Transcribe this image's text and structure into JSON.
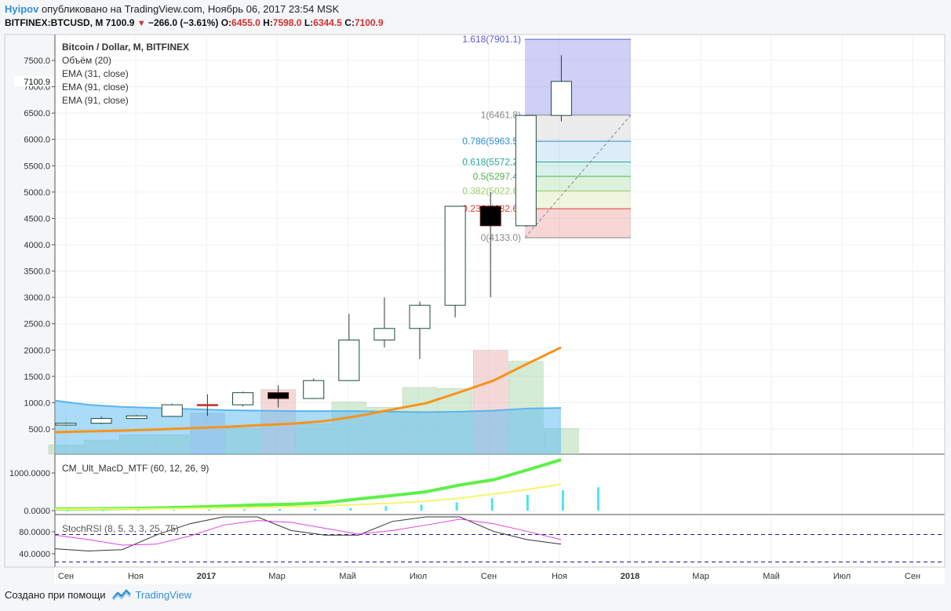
{
  "header": {
    "user": "Hyipov",
    "published_text": " опубликовано на TradingView.com, Ноябрь 06, 2017 23:54 MSK",
    "symbol": "BITFINEX:BTCUSD, M",
    "last": "7100.9",
    "change": "−266.0 (−3.61%)",
    "o_label": "O:",
    "o_val": "6455.0",
    "h_label": "H:",
    "h_val": "7598.0",
    "l_label": "L:",
    "l_val": "6344.5",
    "c_label": "C:",
    "c_val": "7100.9"
  },
  "legend": {
    "title": "Bitcoin / Dollar, M, BITFINEX",
    "volume": "Объём (20)",
    "ema1": "EMA (31, close)",
    "ema2": "EMA (91, close)",
    "ema3": "EMA (91, close)"
  },
  "macd_label": "CM_Ult_MacD_MTF (60, 12, 26, 9)",
  "stoch_label": "StochRSI (8, 5, 3, 3, 25, 75)",
  "footer": {
    "made_with": "Создано при помощи",
    "brand": "TradingView"
  },
  "chart_data": [
    {
      "type": "candlestick",
      "title": "Bitcoin / Dollar, M, BITFINEX",
      "ylim": [
        0,
        8000
      ],
      "yticks": [
        500,
        1000,
        1500,
        2000,
        2500,
        3000,
        3500,
        4000,
        4500,
        5000,
        5500,
        6000,
        6500,
        7000,
        7500
      ],
      "ytick_labels": [
        "500.0",
        "1000.0",
        "1500.0",
        "2000.0",
        "2500.0",
        "3000.0",
        "3500.0",
        "4000.0",
        "4500.0",
        "5000.0",
        "5500.0",
        "6000.0",
        "6500.0",
        "7000.0",
        "7500.0"
      ],
      "last_price_label": "7100.9",
      "x_labels": [
        "Сен",
        "Ноя",
        "2017",
        "Мар",
        "Май",
        "Июл",
        "Сен",
        "Ноя",
        "2018",
        "Мар",
        "Май",
        "Июл",
        "Сен"
      ],
      "candles": [
        {
          "o": 575,
          "h": 625,
          "l": 560,
          "c": 610,
          "dir": "up"
        },
        {
          "o": 610,
          "h": 735,
          "l": 590,
          "c": 700,
          "dir": "up"
        },
        {
          "o": 700,
          "h": 765,
          "l": 690,
          "c": 750,
          "dir": "up"
        },
        {
          "o": 740,
          "h": 980,
          "l": 735,
          "c": 960,
          "dir": "up"
        },
        {
          "o": 965,
          "h": 1160,
          "l": 750,
          "c": 965,
          "dir": "flat"
        },
        {
          "o": 960,
          "h": 1210,
          "l": 930,
          "c": 1190,
          "dir": "up"
        },
        {
          "o": 1190,
          "h": 1330,
          "l": 910,
          "c": 1080,
          "dir": "down"
        },
        {
          "o": 1080,
          "h": 1460,
          "l": 1070,
          "c": 1420,
          "dir": "up"
        },
        {
          "o": 1420,
          "h": 2690,
          "l": 1420,
          "c": 2190,
          "dir": "up"
        },
        {
          "o": 2190,
          "h": 3000,
          "l": 2050,
          "c": 2410,
          "dir": "up"
        },
        {
          "o": 2410,
          "h": 2920,
          "l": 1830,
          "c": 2850,
          "dir": "up"
        },
        {
          "o": 2850,
          "h": 4740,
          "l": 2620,
          "c": 4730,
          "dir": "up"
        },
        {
          "o": 4730,
          "h": 5000,
          "l": 3000,
          "c": 4360,
          "dir": "down"
        },
        {
          "o": 4360,
          "h": 6460,
          "l": 4340,
          "c": 6455,
          "dir": "up"
        },
        {
          "o": 6455,
          "h": 7598,
          "l": 6344.5,
          "c": 7100.9,
          "dir": "up"
        }
      ],
      "ema_orange": [
        440,
        455,
        470,
        490,
        515,
        540,
        570,
        600,
        650,
        750,
        870,
        990,
        1200,
        1420,
        1740,
        2050
      ],
      "ema_blue_band": [
        1040,
        960,
        920,
        900,
        880,
        860,
        850,
        840,
        840,
        840,
        830,
        820,
        830,
        850,
        890,
        900
      ],
      "volume": [
        {
          "v": 180,
          "dir": "up"
        },
        {
          "v": 270,
          "dir": "up"
        },
        {
          "v": 370,
          "dir": "up"
        },
        {
          "v": 370,
          "dir": "up"
        },
        {
          "v": 790,
          "dir": "flat"
        },
        {
          "v": 500,
          "dir": "up"
        },
        {
          "v": 1240,
          "dir": "down"
        },
        {
          "v": 580,
          "dir": "up"
        },
        {
          "v": 1000,
          "dir": "up"
        },
        {
          "v": 900,
          "dir": "up"
        },
        {
          "v": 1280,
          "dir": "up"
        },
        {
          "v": 1260,
          "dir": "up"
        },
        {
          "v": 1990,
          "dir": "down"
        },
        {
          "v": 1780,
          "dir": "up"
        },
        {
          "v": 490,
          "dir": "up"
        }
      ],
      "fibonacci": [
        {
          "label": "1.618(7901.1)",
          "price": 7901.1,
          "color": "#5b5bd6"
        },
        {
          "label": "1(6461.8)",
          "price": 6461.8,
          "color": "#888888"
        },
        {
          "label": "0.786(5963.5)",
          "price": 5963.5,
          "color": "#2f8fd8"
        },
        {
          "label": "0.618(5572.2)",
          "price": 5572.2,
          "color": "#26a69a"
        },
        {
          "label": "0.5(5297.4)",
          "price": 5297.4,
          "color": "#4caf50"
        },
        {
          "label": "0.382(5022.6)",
          "price": 5022.6,
          "color": "#9ccc65"
        },
        {
          "label": "0.236(4682.6)",
          "price": 4682.6,
          "color": "#e53935"
        },
        {
          "label": "0(4133.0)",
          "price": 4133.0,
          "color": "#888888"
        }
      ]
    },
    {
      "type": "line",
      "title": "CM_Ult_MacD_MTF (60, 12, 26, 9)",
      "ylim": [
        0,
        1350
      ],
      "yticks": [
        0,
        1000
      ],
      "ytick_labels": [
        "0.0000",
        "1000.0000"
      ],
      "series": [
        {
          "name": "macd",
          "values": [
            45,
            48,
            55,
            70,
            90,
            120,
            150,
            170,
            210,
            310,
            400,
            500,
            680,
            820,
            1080,
            1350
          ]
        },
        {
          "name": "signal",
          "values": [
            40,
            42,
            45,
            50,
            60,
            72,
            88,
            105,
            125,
            160,
            200,
            250,
            330,
            440,
            560,
            700
          ]
        }
      ],
      "histogram": [
        5,
        8,
        12,
        20,
        28,
        38,
        45,
        50,
        70,
        120,
        160,
        220,
        330,
        420,
        540,
        620
      ]
    },
    {
      "type": "line",
      "title": "StochRSI (8, 5, 3, 3, 25, 75)",
      "ylim": [
        0,
        100
      ],
      "yticks": [
        40,
        80
      ],
      "ytick_labels": [
        "40.0000",
        "80.0000"
      ],
      "levels": [
        25,
        75
      ],
      "series": [
        {
          "name": "k",
          "values": [
            30,
            25,
            28,
            60,
            85,
            100,
            100,
            70,
            60,
            60,
            90,
            100,
            100,
            68,
            50,
            40
          ]
        },
        {
          "name": "d",
          "values": [
            60,
            50,
            38,
            40,
            58,
            82,
            92,
            88,
            75,
            62,
            70,
            82,
            95,
            85,
            68,
            50
          ]
        }
      ]
    }
  ]
}
